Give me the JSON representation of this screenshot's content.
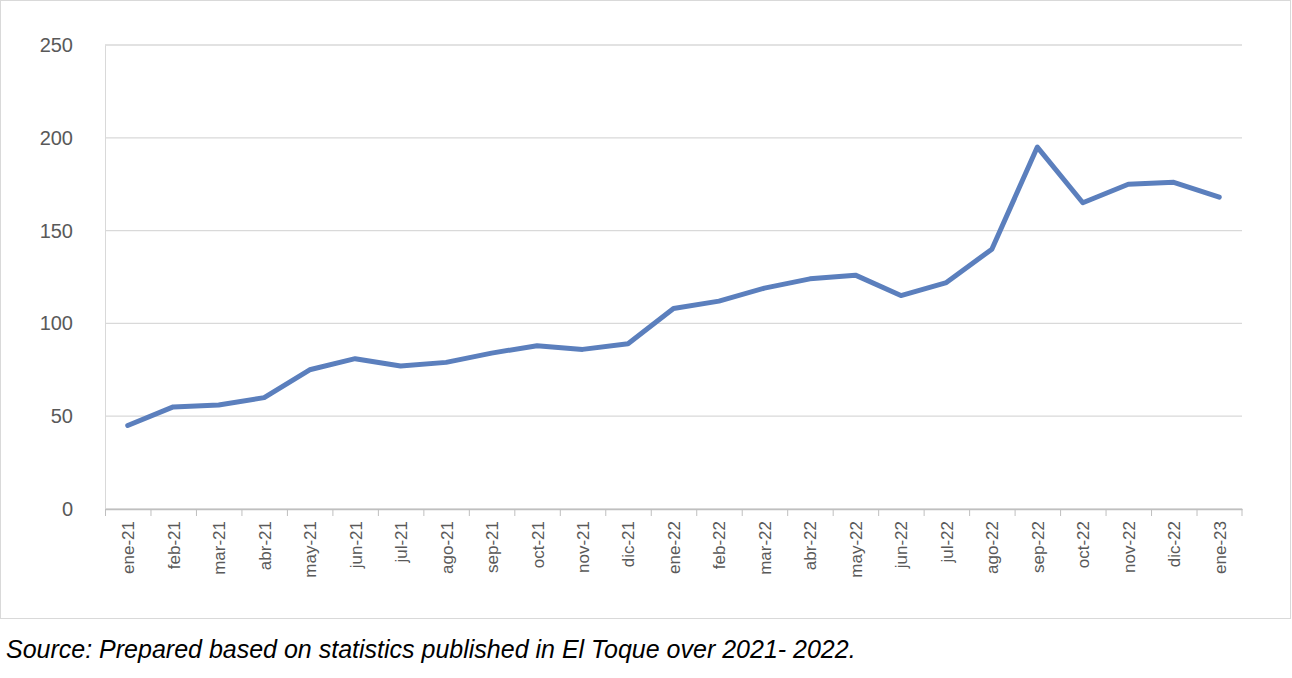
{
  "chart_data": {
    "type": "line",
    "source": "Source: Prepared based on statistics published in El Toque over 2021- 2022.",
    "categories": [
      "ene-21",
      "feb-21",
      "mar-21",
      "abr-21",
      "may-21",
      "jun-21",
      "jul-21",
      "ago-21",
      "sep-21",
      "oct-21",
      "nov-21",
      "dic-21",
      "ene-22",
      "feb-22",
      "mar-22",
      "abr-22",
      "may-22",
      "jun-22",
      "jul-22",
      "ago-22",
      "sep-22",
      "oct-22",
      "nov-22",
      "dic-22",
      "ene-23"
    ],
    "values": [
      45,
      55,
      56,
      60,
      75,
      81,
      77,
      79,
      84,
      88,
      86,
      89,
      108,
      112,
      119,
      124,
      126,
      115,
      122,
      140,
      195,
      165,
      175,
      176,
      168
    ],
    "color": "#5b7fbd",
    "ylim": [
      0,
      250
    ],
    "yticks": [
      0,
      50,
      100,
      150,
      200,
      250
    ],
    "grid": true
  }
}
